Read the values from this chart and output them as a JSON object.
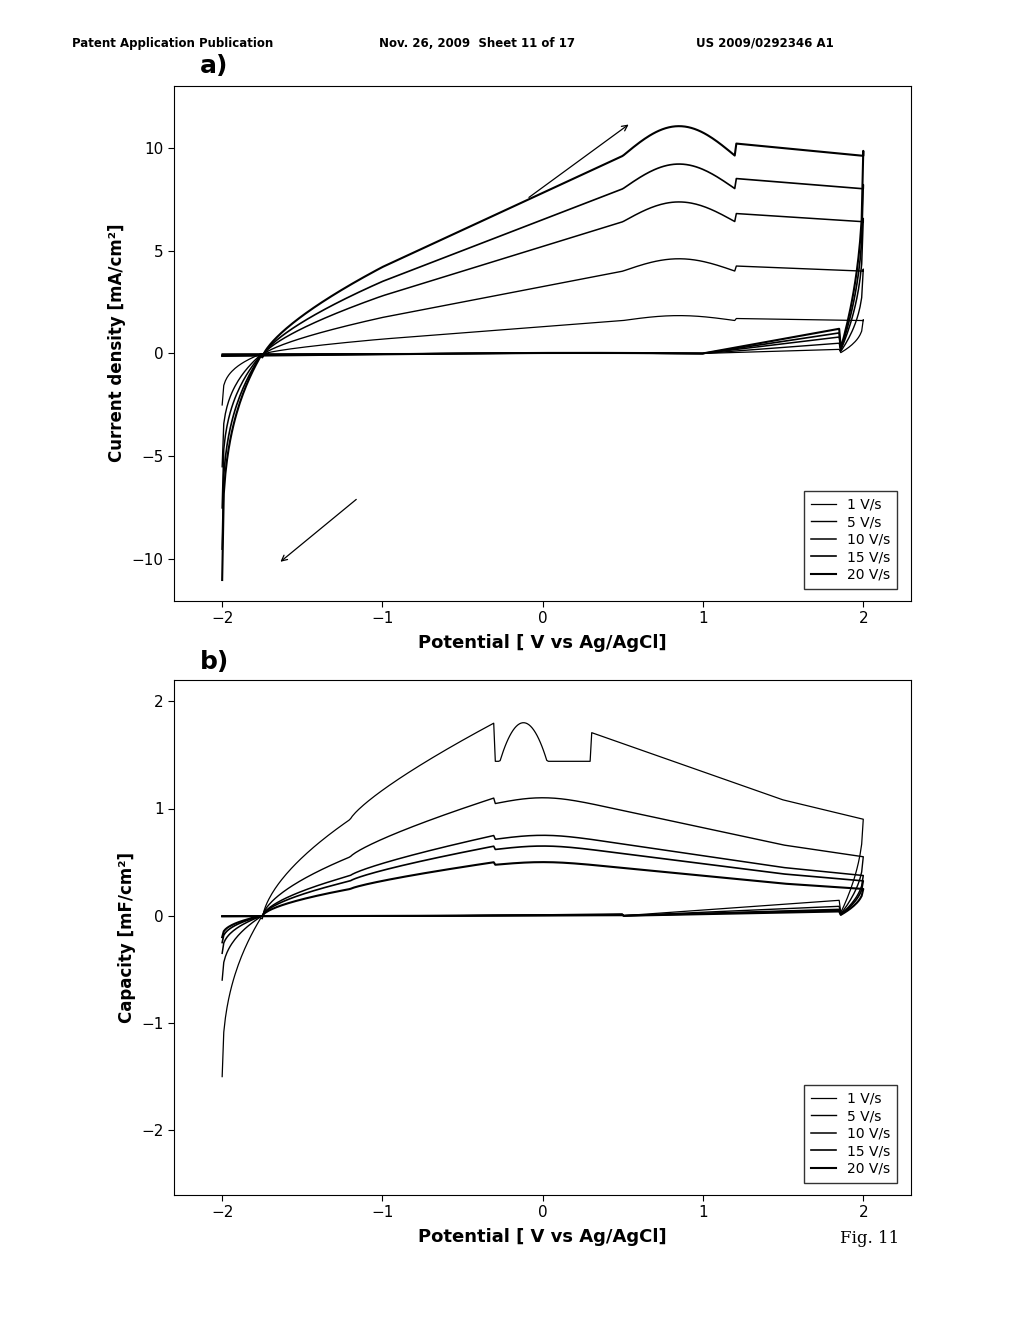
{
  "header_left": "Patent Application Publication",
  "header_mid": "Nov. 26, 2009  Sheet 11 of 17",
  "header_right": "US 2009/0292346 A1",
  "fig_label": "Fig. 11",
  "subplot_a_label": "a)",
  "subplot_b_label": "b)",
  "xlabel": "Potential [ V vs Ag/AgCl]",
  "ylabel_a": "Current density [mA/cm²]",
  "ylabel_b": "Capacity [mF/cm²]",
  "legend_labels": [
    "1 V/s",
    "5 V/s",
    "10 V/s",
    "15 V/s",
    "20 V/s"
  ],
  "xlim_a": [
    -2.3,
    2.3
  ],
  "ylim_a": [
    -12,
    13
  ],
  "xlim_b": [
    -2.3,
    2.3
  ],
  "ylim_b": [
    -2.6,
    2.2
  ],
  "xticks": [
    -2,
    -1,
    0,
    1,
    2
  ],
  "yticks_a": [
    -10,
    -5,
    0,
    5,
    10
  ],
  "yticks_b": [
    -2,
    -1,
    0,
    1,
    2
  ],
  "background_color": "white",
  "plot_bg": "white",
  "scan_rates": [
    1,
    5,
    10,
    15,
    20
  ],
  "lws": [
    0.9,
    1.0,
    1.1,
    1.2,
    1.5
  ]
}
